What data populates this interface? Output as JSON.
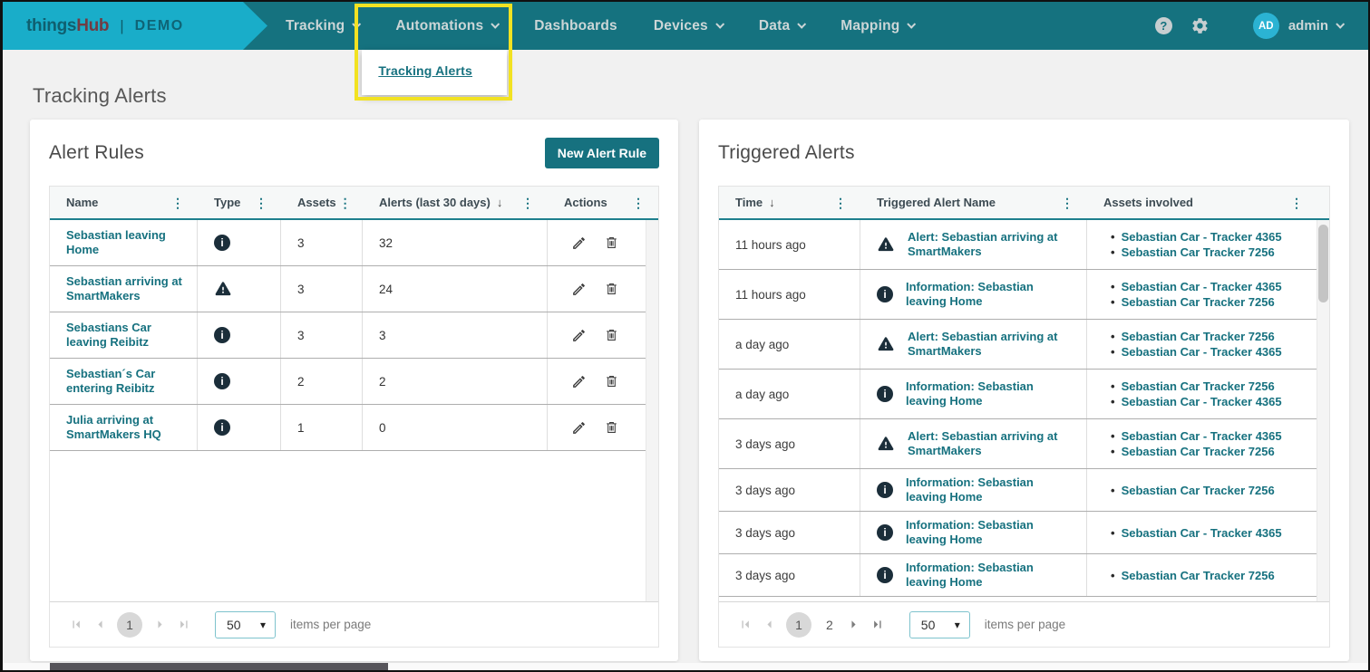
{
  "colors": {
    "header_bar": "#15727f",
    "brand_block": "#19adc9",
    "brand_hub_text": "#713c43",
    "accent_teal": "#16717f",
    "dark_status_icon": "#1b2e3a",
    "highlight_yellow": "#f2e222",
    "avatar_cyan": "#2bb3d3",
    "page_background": "#f1f1f1"
  },
  "header": {
    "brand_primary": "things",
    "brand_secondary": "Hub",
    "brand_divider": "|",
    "brand_env": "DEMO",
    "nav_items": [
      {
        "label": "Tracking",
        "has_dropdown": true
      },
      {
        "label": "Automations",
        "has_dropdown": true,
        "open": true,
        "highlighted": true
      },
      {
        "label": "Dashboards",
        "has_dropdown": false
      },
      {
        "label": "Devices",
        "has_dropdown": true
      },
      {
        "label": "Data",
        "has_dropdown": true
      },
      {
        "label": "Mapping",
        "has_dropdown": true
      }
    ],
    "automations_dropdown": {
      "items": [
        {
          "label": "Tracking Alerts"
        }
      ]
    },
    "user_initials": "AD",
    "user_name": "admin"
  },
  "page": {
    "title": "Tracking Alerts"
  },
  "alert_rules": {
    "title": "Alert Rules",
    "new_button_label": "New Alert Rule",
    "columns": {
      "name": "Name",
      "type": "Type",
      "assets": "Assets",
      "alerts": "Alerts (last 30 days)",
      "actions": "Actions"
    },
    "sort": {
      "column": "alerts",
      "direction": "desc"
    },
    "sort_indicator": "↓",
    "rows": [
      {
        "name": "Sebastian leaving Home",
        "type": "info",
        "assets": "3",
        "alerts": "32"
      },
      {
        "name": "Sebastian arriving at SmartMakers",
        "type": "warning",
        "assets": "3",
        "alerts": "24"
      },
      {
        "name": "Sebastians Car leaving Reibitz",
        "type": "info",
        "assets": "3",
        "alerts": "3"
      },
      {
        "name": "Sebastian´s Car entering Reibitz",
        "type": "info",
        "assets": "2",
        "alerts": "2"
      },
      {
        "name": "Julia arriving at SmartMakers HQ",
        "type": "info",
        "assets": "1",
        "alerts": "0"
      }
    ],
    "pagination": {
      "current_page": "1",
      "page_size": "50",
      "items_per_page_label": "items per page"
    }
  },
  "triggered_alerts": {
    "title": "Triggered Alerts",
    "columns": {
      "time": "Time",
      "name": "Triggered Alert Name",
      "assets": "Assets involved"
    },
    "sort": {
      "column": "time",
      "direction": "desc"
    },
    "sort_indicator": "↓",
    "rows": [
      {
        "time": "11 hours ago",
        "type": "warning",
        "name": "Alert: Sebastian arriving at SmartMakers",
        "assets": [
          "Sebastian Car - Tracker 4365",
          "Sebastian Car Tracker 7256"
        ]
      },
      {
        "time": "11 hours ago",
        "type": "info",
        "name": "Information: Sebastian leaving Home",
        "assets": [
          "Sebastian Car - Tracker 4365",
          "Sebastian Car Tracker 7256"
        ]
      },
      {
        "time": "a day ago",
        "type": "warning",
        "name": "Alert: Sebastian arriving at SmartMakers",
        "assets": [
          "Sebastian Car Tracker 7256",
          "Sebastian Car - Tracker 4365"
        ]
      },
      {
        "time": "a day ago",
        "type": "info",
        "name": "Information: Sebastian leaving Home",
        "assets": [
          "Sebastian Car Tracker 7256",
          "Sebastian Car - Tracker 4365"
        ]
      },
      {
        "time": "3 days ago",
        "type": "warning",
        "name": "Alert: Sebastian arriving at SmartMakers",
        "assets": [
          "Sebastian Car - Tracker 4365",
          "Sebastian Car Tracker 7256"
        ]
      },
      {
        "time": "3 days ago",
        "type": "info",
        "name": "Information: Sebastian leaving Home",
        "assets": [
          "Sebastian Car Tracker 7256"
        ]
      },
      {
        "time": "3 days ago",
        "type": "info",
        "name": "Information: Sebastian leaving Home",
        "assets": [
          "Sebastian Car - Tracker 4365"
        ]
      },
      {
        "time": "3 days ago",
        "type": "info",
        "name": "Information: Sebastian leaving Home",
        "assets": [
          "Sebastian Car Tracker 7256"
        ]
      }
    ],
    "pagination": {
      "pages": [
        "1",
        "2"
      ],
      "current_page": "1",
      "page_size": "50",
      "items_per_page_label": "items per page"
    }
  }
}
